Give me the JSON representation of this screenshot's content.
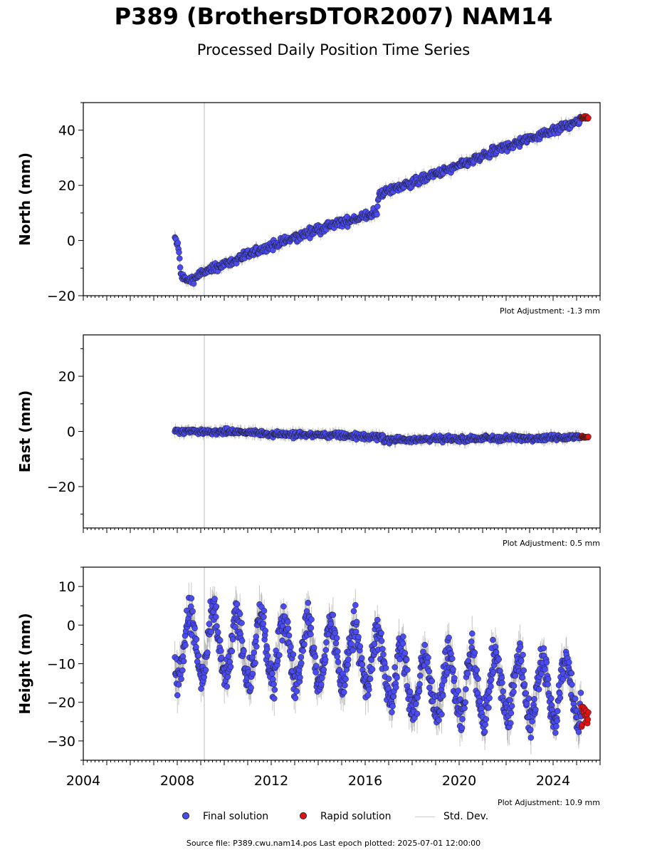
{
  "title": "P389 (BrothersDTOR2007) NAM14",
  "subtitle": "Processed Daily Position Time Series",
  "colors": {
    "final": "#4b4bf2",
    "rapid": "#e21313",
    "std": "#808080",
    "marker": "#ccd0d0"
  },
  "chart_data": [
    {
      "type": "scatter",
      "name": "north",
      "ylabel": "North (mm)",
      "ylim": [
        -20,
        50
      ],
      "yticks": [
        -20,
        0,
        20,
        40
      ],
      "yticklabels": [
        "−20",
        "0",
        "20",
        "40"
      ],
      "xlim": [
        2004.0,
        2026.0
      ],
      "adjustment": "Plot Adjustment: -1.3 mm",
      "trend_points": [
        [
          2007.9,
          1.0
        ],
        [
          2008.05,
          -2.5
        ],
        [
          2008.15,
          -12.5
        ],
        [
          2008.5,
          -15.0
        ],
        [
          2009.0,
          -12.0
        ],
        [
          2012.0,
          -2.0
        ],
        [
          2014.0,
          4.0
        ],
        [
          2015.0,
          6.5
        ],
        [
          2016.5,
          10.0
        ],
        [
          2016.6,
          17.0
        ],
        [
          2018.0,
          21.0
        ],
        [
          2020.0,
          27.0
        ],
        [
          2022.0,
          34.0
        ],
        [
          2024.0,
          40.0
        ],
        [
          2025.5,
          44.3
        ]
      ],
      "scatter_mm": 1.4,
      "final_last": 2025.2,
      "rapid_range": [
        2025.2,
        2025.5
      ],
      "rapid_value": 44.5
    },
    {
      "type": "scatter",
      "name": "east",
      "ylabel": "East (mm)",
      "ylim": [
        -35,
        35
      ],
      "yticks": [
        -20,
        0,
        20
      ],
      "yticklabels": [
        "−20",
        "0",
        "20"
      ],
      "xlim": [
        2004.0,
        2026.0
      ],
      "adjustment": "Plot Adjustment: 0.5 mm",
      "trend_points": [
        [
          2007.9,
          0.0
        ],
        [
          2010.0,
          0.0
        ],
        [
          2013.0,
          -1.2
        ],
        [
          2015.0,
          -1.5
        ],
        [
          2016.5,
          -2.0
        ],
        [
          2017.0,
          -3.0
        ],
        [
          2020.0,
          -2.7
        ],
        [
          2023.0,
          -2.3
        ],
        [
          2025.5,
          -2.0
        ]
      ],
      "scatter_mm": 0.9,
      "final_last": 2025.2,
      "rapid_range": [
        2025.2,
        2025.5
      ],
      "rapid_value": -2.0
    },
    {
      "type": "scatter",
      "name": "height",
      "ylabel": "Height (mm)",
      "ylim": [
        -35,
        15
      ],
      "yticks": [
        -30,
        -20,
        -10,
        0,
        10
      ],
      "yticklabels": [
        "−30",
        "−20",
        "−10",
        "0",
        "10"
      ],
      "xlim": [
        2004.0,
        2026.0
      ],
      "xticks": [
        2004,
        2008,
        2012,
        2016,
        2020,
        2024
      ],
      "adjustment": "Plot Adjustment: 10.9 mm",
      "trend_points": [
        [
          2007.9,
          -5.0
        ],
        [
          2016.0,
          -8.0
        ],
        [
          2018.0,
          -15.0
        ],
        [
          2025.5,
          -17.0
        ]
      ],
      "seasonal_amp_mm": 8.0,
      "scatter_mm": 4.0,
      "final_last": 2025.2,
      "rapid_range": [
        2025.2,
        2025.5
      ],
      "rapid_value": -23.0
    }
  ],
  "marker_year": 2009.15,
  "legend": {
    "final": "Final solution",
    "rapid": "Rapid solution",
    "std": "Std. Dev."
  },
  "footer": "Source file: P389.cwu.nam14.pos  Last epoch plotted: 2025-07-01 12:00:00"
}
